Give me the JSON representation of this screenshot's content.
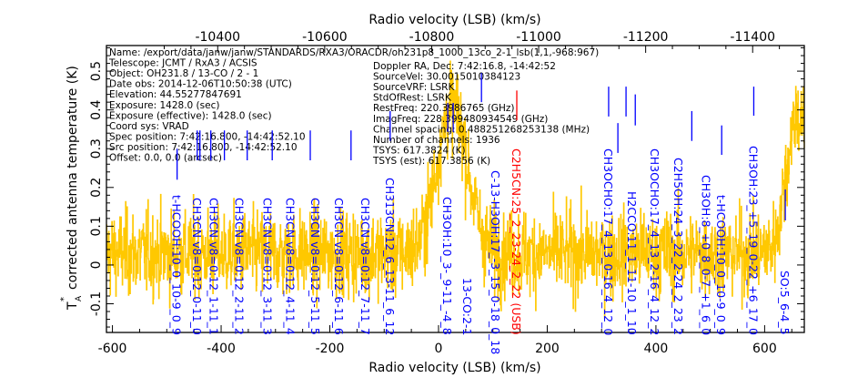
{
  "chart_data": {
    "type": "line",
    "title": "",
    "xlabel": "Radio velocity (LSB) (km/s)",
    "x2label": "Radio velocity (LSB) (km/s)",
    "ylabel_main": "T",
    "ylabel_sub": "A",
    "ylabel_sup": "*",
    "ylabel_rest": "corrected antenna temperature (K)",
    "xlim": [
      -611,
      673
    ],
    "ylim": [
      -0.174,
      0.566
    ],
    "xticks": [
      -600,
      -400,
      -200,
      0,
      200,
      400,
      600
    ],
    "xtick_labels": [
      "-600",
      "-400",
      "-200",
      "0",
      "200",
      "400",
      "600"
    ],
    "x_minor_step": 50,
    "yticks": [
      -0.1,
      0,
      0.1,
      0.2,
      0.3,
      0.4,
      0.5
    ],
    "ytick_labels": [
      "-0.1",
      "0",
      "0.1",
      "0.2",
      "0.3",
      "0.4",
      "0.5"
    ],
    "y_minor_step": 0.02,
    "top_axis": {
      "ticks": [
        -10400,
        -10600,
        -10800,
        -11000,
        -11200,
        -11400
      ],
      "tick_labels": [
        "-10400",
        "-10600",
        "-10800",
        "-11000",
        "-11200",
        "-11400"
      ],
      "relation": {
        "offset": -10812.8,
        "slope": -1.016
      }
    },
    "grid": false,
    "spectrum": {
      "color": "#FFC800",
      "n_channels": 1936,
      "noise_rms": 0.055,
      "baseline": 0.03,
      "peaks": [
        {
          "center": 25,
          "amplitude": 0.38,
          "width": 28
        },
        {
          "center": 660,
          "amplitude": 0.36,
          "width": 20
        }
      ]
    },
    "lines": [
      {
        "label": "t-HCOOH:10_0_10-9_0_9",
        "velocity": -481,
        "color": "#0000FF",
        "marker": [
          0.22,
          0.3
        ]
      },
      {
        "label": "CH3CN v8=0:12_0-11_0",
        "velocity": -444,
        "color": "#0000FF",
        "marker": [
          0.27,
          0.347
        ]
      },
      {
        "label": "CH3CN v8=0:12_1-11_1",
        "velocity": -439,
        "color": "#0000FF",
        "marker": [
          0.27,
          0.347
        ]
      },
      {
        "label": "CH3CN v8=0:12_2-11_2",
        "velocity": -419,
        "color": "#0000FF",
        "marker": [
          0.27,
          0.347
        ]
      },
      {
        "label": "CH3CN v8=0:12_3-11_3",
        "velocity": -394,
        "color": "#0000FF",
        "marker": [
          0.27,
          0.347
        ]
      },
      {
        "label": "CH3CN v8=0:12_4-11_4",
        "velocity": -352,
        "color": "#0000FF",
        "marker": [
          0.27,
          0.347
        ]
      },
      {
        "label": "CH3CN v8=0:12_5-11_5",
        "velocity": -306,
        "color": "#0000FF",
        "marker": [
          0.27,
          0.347
        ]
      },
      {
        "label": "CH3CN v8=0:12_6-11_6",
        "velocity": -236,
        "color": "#0000FF",
        "marker": [
          0.27,
          0.347
        ]
      },
      {
        "label": "CH3CN v8=0:12_7-11_7",
        "velocity": -161,
        "color": "#0000FF",
        "marker": [
          0.27,
          0.347
        ]
      },
      {
        "label": "CH313CN:12_6_13-11_6_12",
        "velocity": -89,
        "color": "#0000FF",
        "marker": [
          0.32,
          0.397
        ]
      },
      {
        "label": "CH3OH:10_3-_9-11_-4_8",
        "velocity": 17,
        "color": "#0000FF",
        "marker": [
          0.343,
          0.418
        ]
      },
      {
        "label": "13-CO:2-1",
        "velocity": 27,
        "color": "#0000FF",
        "marker": [
          0.343,
          0.418
        ]
      },
      {
        "label": "C-13-H3OH:17_-3_15_0-18_0_18",
        "velocity": 79,
        "color": "#0000FF",
        "marker": [
          0.42,
          0.495
        ]
      },
      {
        "label": "C2H5CN:25_2_23-24_2_22 (USB)",
        "velocity": 144,
        "color": "#FF0000",
        "marker": [
          0.373,
          0.45
        ]
      },
      {
        "label": "CH3OCHO:17_4_13_0-16_4_12_0",
        "velocity": 313,
        "color": "#0000FF",
        "marker": [
          0.383,
          0.46
        ]
      },
      {
        "label": "H2CCO:11_1_11-10_1_10",
        "velocity": 330,
        "color": "#0000FF",
        "marker": [
          0.289,
          0.366
        ]
      },
      {
        "label": "CH3OCHO:17_4_13_2-16_4_12_2",
        "velocity": 345,
        "color": "#0000FF",
        "marker": [
          0.383,
          0.46
        ]
      },
      {
        "label": "C2H5OH:24_3_22_2-24_2_23_2",
        "velocity": 362,
        "color": "#0000FF",
        "marker": [
          0.36,
          0.44
        ]
      },
      {
        "label": "CH3OH:8_+0_8_0-7_+1_6_0",
        "velocity": 466,
        "color": "#0000FF",
        "marker": [
          0.32,
          0.397
        ]
      },
      {
        "label": "t-HCOOH:10_0_10-9_0_9",
        "velocity": 521,
        "color": "#0000FF",
        "marker": [
          0.284,
          0.36
        ]
      },
      {
        "label": "CH3OH:23_+5_19_0-22_+6_17_0",
        "velocity": 580,
        "color": "#0000FF",
        "marker": [
          0.385,
          0.46
        ]
      },
      {
        "label": "SO:5_6-4_5",
        "velocity": 638,
        "color": "#0000FF",
        "marker": [
          0.115,
          0.195
        ]
      }
    ]
  },
  "info": [
    "Name: /export/data/janw/janw/STANDARDS/RXA3/ORACDR/oh231p8_1000_13co_2-1_lsb(1,1,-968:967)",
    "Telescope: JCMT / RxA3 / ACSIS",
    "Object: OH231.8 / 13-CO / 2  - 1",
    "Date obs: 2014-12-06T10:50:38 (UTC)",
    "Elevation: 44.55277847691",
    "Exposure: 1428.0 (sec)",
    "Exposure (effective): 1428.0 (sec)",
    "Coord sys: VRAD",
    "Spec position: 7:42:16.800, -14:42:52.10",
    "Src position: 7:42:16.800, -14:42:52.10",
    "Offset: 0.0, 0.0 (arcsec)",
    "Doppler RA, Dec: 7:42:16.8, -14:42:52",
    "SourceVel: 30.0015010384123",
    "SourceVRF: LSRK",
    "StdOfRest: LSRK",
    "RestFreq: 220.3986765 (GHz)",
    "ImagFreq: 228.399480934549 (GHz)",
    "Channel spacing: 0.488251268253138 (MHz)",
    "Number of channels: 1936",
    "TSYS: 617.3824 (K)",
    "TSYS (est): 617.3856 (K)"
  ]
}
